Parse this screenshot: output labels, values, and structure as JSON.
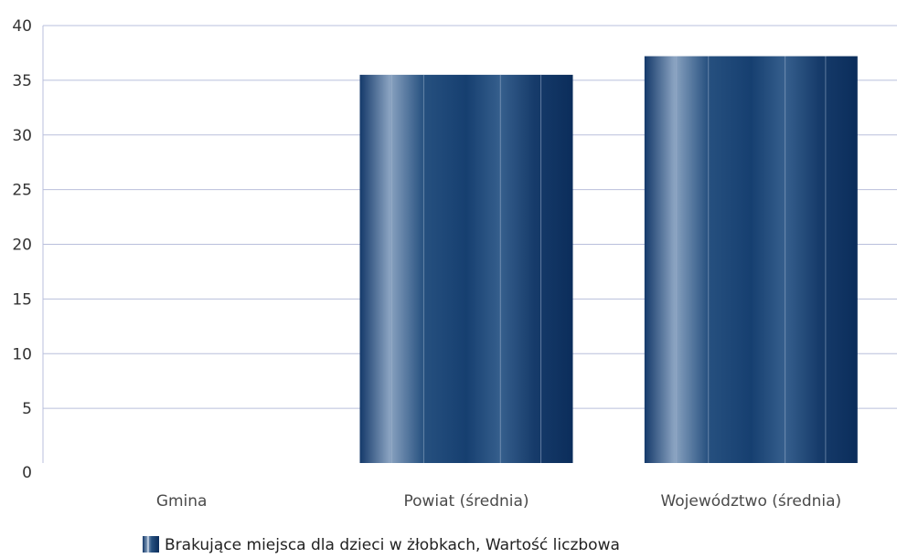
{
  "chart_data": {
    "type": "bar",
    "categories": [
      "Gmina",
      "Powiat (średnia)",
      "Województwo (średnia)"
    ],
    "series": [
      {
        "name": "Brakujące miejsca dla dzieci w żłobkach, Wartość liczbowa",
        "values": [
          0,
          35.5,
          37.2
        ]
      }
    ],
    "ylim": [
      0,
      40
    ],
    "yticks": [
      0,
      5,
      10,
      15,
      20,
      25,
      30,
      35,
      40
    ],
    "grid": true,
    "legend_position": "bottom",
    "colors": {
      "bar_dark": "#0b2d5b",
      "bar_mid": "#2c5583",
      "bar_light": "#8aa3c1",
      "grid": "#b9bfdc",
      "axis": "#b9bfdc"
    }
  }
}
